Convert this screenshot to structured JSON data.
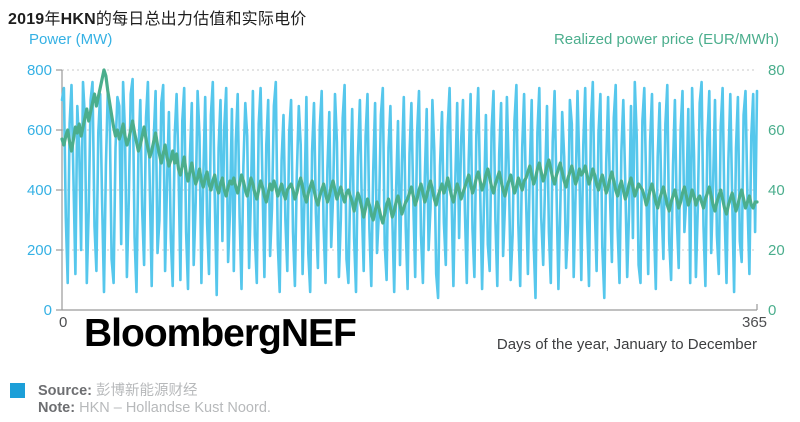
{
  "title": {
    "part1": "2019",
    "part2": "年",
    "part3": "HKN",
    "part4": "的每日总出力估值和实际电价"
  },
  "axes": {
    "left_label": "Power (MW)",
    "right_label": "Realized power price (EUR/MWh)",
    "x_label": "Days of the year, January to December",
    "x_min_label": "0",
    "x_max_label": "365"
  },
  "watermark": "BloombergNEF",
  "footer": {
    "source_label": "Source:",
    "source_value": "彭博新能源财经",
    "note_label": "Note:",
    "note_value": "HKN – Hollandse Kust Noord."
  },
  "colors": {
    "power_line": "#56c7ec",
    "price_line": "#4bae8d",
    "left_tick_text": "#35b1e4",
    "right_tick_text": "#4bae8d",
    "grid": "#c9c9c9",
    "axis": "#9a9a9a",
    "source_square": "#1c9fd8"
  },
  "chart_data": {
    "type": "line",
    "title": "2019年HKN的每日总出力估值和实际电价",
    "x_label": "Days of the year, January to December",
    "x_range": [
      0,
      365
    ],
    "x_tick_labels": [
      "0",
      "365"
    ],
    "grid": "horizontal dotted at every 200 MW / 20 EUR",
    "legend_position": "axis headers (left blue = power, right green = price)",
    "left_axis": {
      "label": "Power (MW)",
      "max": 800,
      "min": 0,
      "ticks": [
        800,
        600,
        400,
        200,
        0
      ]
    },
    "right_axis": {
      "label": "Realized power price (EUR/MWh)",
      "max": 80,
      "min": 0,
      "ticks": [
        80,
        60,
        40,
        20,
        0
      ]
    },
    "series": [
      {
        "name": "Power (MW)",
        "axis": "left",
        "unit": "MW",
        "color": "#56c7ec",
        "width": 2.6,
        "values": [
          700,
          740,
          310,
          90,
          620,
          750,
          430,
          120,
          680,
          540,
          200,
          760,
          640,
          90,
          330,
          700,
          760,
          280,
          130,
          590,
          720,
          360,
          60,
          480,
          730,
          650,
          170,
          90,
          540,
          710,
          680,
          220,
          760,
          590,
          110,
          370,
          720,
          770,
          240,
          60,
          520,
          700,
          330,
          150,
          640,
          760,
          410,
          80,
          560,
          730,
          190,
          300,
          690,
          750,
          130,
          420,
          660,
          240,
          80,
          580,
          720,
          480,
          100,
          630,
          740,
          260,
          70,
          510,
          690,
          150,
          360,
          730,
          580,
          90,
          440,
          710,
          290,
          120,
          650,
          760,
          380,
          50,
          540,
          700,
          230,
          610,
          740,
          160,
          330,
          670,
          130,
          560,
          720,
          310,
          70,
          480,
          690,
          580,
          140,
          390,
          730,
          250,
          90,
          620,
          740,
          420,
          110,
          550,
          700,
          180,
          340,
          680,
          760,
          220,
          60,
          500,
          650,
          300,
          130,
          590,
          700,
          260,
          80,
          450,
          680,
          550,
          120,
          370,
          710,
          190,
          60,
          530,
          690,
          320,
          140,
          610,
          730,
          280,
          90,
          470,
          660,
          210,
          380,
          720,
          560,
          110,
          300,
          640,
          750,
          170,
          90,
          420,
          670,
          240,
          60,
          510,
          700,
          350,
          130,
          580,
          720,
          270,
          80,
          460,
          690,
          190,
          330,
          650,
          740,
          220,
          100,
          540,
          680,
          310,
          60,
          400,
          630,
          150,
          490,
          710,
          280,
          70,
          520,
          690,
          360,
          110,
          590,
          730,
          250,
          90,
          440,
          670,
          200,
          340,
          700,
          530,
          120,
          40,
          480,
          660,
          290,
          150,
          610,
          740,
          380,
          80,
          430,
          690,
          240,
          560,
          700,
          330,
          90,
          500,
          720,
          270,
          110,
          580,
          740,
          410,
          70,
          360,
          650,
          220,
          130,
          600,
          730,
          300,
          80,
          520,
          690,
          180,
          350,
          710,
          460,
          100,
          250,
          630,
          750,
          290,
          80,
          540,
          720,
          380,
          120,
          470,
          700,
          230,
          40,
          590,
          740,
          310,
          150,
          430,
          680,
          260,
          90,
          560,
          730,
          400,
          70,
          340,
          660,
          510,
          140,
          280,
          700,
          620,
          110,
          390,
          730,
          470,
          100,
          550,
          740,
          300,
          80,
          620,
          760,
          350,
          130,
          590,
          720,
          210,
          40,
          490,
          710,
          380,
          160,
          640,
          750,
          270,
          90,
          530,
          700,
          420,
          110,
          330,
          680,
          240,
          760,
          580,
          150,
          90,
          630,
          740,
          400,
          120,
          560,
          720,
          290,
          70,
          510,
          690,
          350,
          170,
          620,
          750,
          230,
          100,
          480,
          700,
          310,
          140,
          600,
          730,
          260,
          380,
          670,
          90,
          740,
          520,
          110,
          340,
          690,
          760,
          280,
          80,
          570,
          730,
          190,
          420,
          700,
          250,
          120,
          610,
          740,
          330,
          90,
          500,
          720,
          370,
          60,
          540,
          710,
          230,
          160,
          650,
          730,
          360,
          120,
          580,
          720,
          260,
          730
        ]
      },
      {
        "name": "Realized power price (EUR/MWh)",
        "axis": "right",
        "unit": "EUR/MWh",
        "color": "#4bae8d",
        "width": 3.2,
        "values": [
          57,
          55,
          58,
          60,
          56,
          53,
          57,
          61,
          59,
          62,
          58,
          61,
          64,
          67,
          63,
          66,
          69,
          72,
          68,
          71,
          74,
          77,
          80,
          78,
          73,
          69,
          65,
          61,
          58,
          60,
          57,
          59,
          62,
          58,
          55,
          57,
          60,
          63,
          59,
          56,
          53,
          55,
          58,
          61,
          57,
          54,
          51,
          53,
          56,
          59,
          55,
          52,
          49,
          52,
          55,
          51,
          48,
          50,
          53,
          49,
          52,
          47,
          45,
          48,
          51,
          46,
          43,
          46,
          49,
          45,
          42,
          44,
          47,
          43,
          41,
          44,
          46,
          42,
          40,
          43,
          45,
          41,
          39,
          42,
          44,
          40,
          38,
          41,
          43,
          42,
          44,
          41,
          39,
          42,
          45,
          43,
          40,
          38,
          41,
          44,
          42,
          39,
          37,
          40,
          43,
          41,
          38,
          36,
          39,
          42,
          40,
          43,
          41,
          38,
          40,
          42,
          39,
          37,
          40,
          41,
          42,
          40,
          37,
          39,
          42,
          44,
          41,
          38,
          36,
          39,
          41,
          43,
          40,
          37,
          35,
          38,
          40,
          42,
          39,
          36,
          38,
          41,
          43,
          40,
          37,
          39,
          41,
          38,
          36,
          39,
          40,
          38,
          36,
          33,
          36,
          39,
          37,
          34,
          31,
          34,
          37,
          35,
          32,
          30,
          33,
          36,
          34,
          31,
          29,
          32,
          35,
          37,
          34,
          31,
          33,
          36,
          38,
          35,
          32,
          34,
          36,
          37,
          39,
          41,
          38,
          35,
          37,
          40,
          42,
          39,
          36,
          38,
          41,
          43,
          40,
          37,
          35,
          38,
          40,
          42,
          39,
          41,
          44,
          41,
          38,
          36,
          39,
          42,
          40,
          37,
          39,
          41,
          43,
          45,
          42,
          39,
          41,
          44,
          46,
          43,
          40,
          42,
          45,
          47,
          44,
          41,
          39,
          42,
          44,
          46,
          43,
          40,
          38,
          41,
          43,
          45,
          42,
          39,
          41,
          44,
          42,
          40,
          43,
          44,
          46,
          48,
          45,
          42,
          44,
          47,
          49,
          46,
          43,
          45,
          48,
          50,
          47,
          44,
          42,
          45,
          47,
          49,
          46,
          43,
          41,
          44,
          46,
          48,
          45,
          42,
          44,
          47,
          45,
          46,
          48,
          45,
          42,
          44,
          47,
          45,
          42,
          40,
          43,
          45,
          42,
          39,
          41,
          44,
          46,
          43,
          40,
          38,
          41,
          43,
          40,
          37,
          39,
          42,
          44,
          41,
          38,
          40,
          42,
          41,
          40,
          38,
          35,
          37,
          40,
          42,
          39,
          36,
          34,
          37,
          39,
          41,
          38,
          35,
          33,
          36,
          38,
          40,
          37,
          34,
          36,
          39,
          41,
          38,
          35,
          37,
          40,
          38,
          35,
          37,
          38,
          36,
          34,
          37,
          39,
          41,
          38,
          35,
          33,
          36,
          38,
          40,
          37,
          34,
          32,
          35,
          37,
          39,
          36,
          33,
          35,
          38,
          40,
          37,
          34,
          36,
          38,
          35,
          34,
          36,
          36
        ]
      }
    ]
  }
}
